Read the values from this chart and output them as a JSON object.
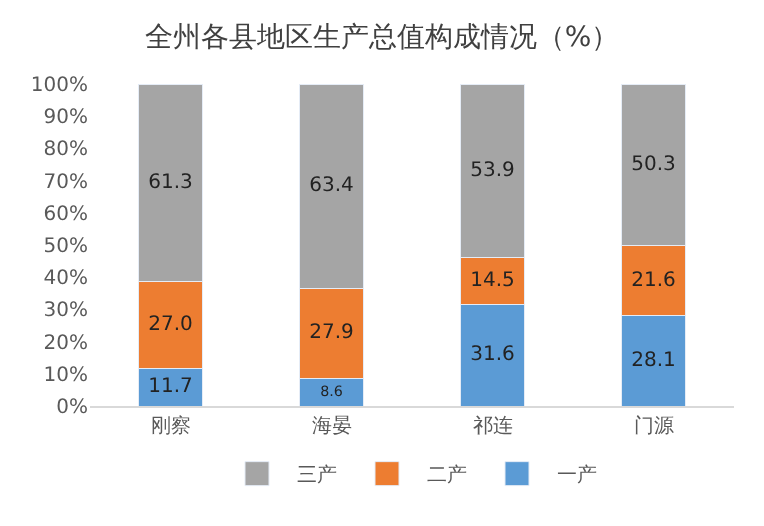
{
  "chart_data": {
    "type": "bar",
    "stacked": true,
    "title": "全州各县地区生产总值构成情况（%）",
    "categories": [
      "刚察",
      "海晏",
      "祁连",
      "门源"
    ],
    "series": [
      {
        "name": "一产",
        "color": "#5b9bd5",
        "values": [
          11.7,
          8.6,
          31.6,
          28.1
        ],
        "value_labels": [
          "11.7",
          "8.6",
          "31.6",
          "28.1"
        ]
      },
      {
        "name": "二产",
        "color": "#ed7d31",
        "values": [
          27.0,
          27.9,
          14.5,
          21.6
        ],
        "value_labels": [
          "27.0",
          "27.9",
          "14.5",
          "21.6"
        ]
      },
      {
        "name": "三产",
        "color": "#a5a5a5",
        "values": [
          61.3,
          63.4,
          53.9,
          50.3
        ],
        "value_labels": [
          "61.3",
          "63.4",
          "53.9",
          "50.3"
        ]
      }
    ],
    "ylim": [
      0,
      100
    ],
    "yticks": [
      {
        "value": 0,
        "label": "0%"
      },
      {
        "value": 10,
        "label": "10%"
      },
      {
        "value": 20,
        "label": "20%"
      },
      {
        "value": 30,
        "label": "30%"
      },
      {
        "value": 40,
        "label": "40%"
      },
      {
        "value": 50,
        "label": "50%"
      },
      {
        "value": 60,
        "label": "60%"
      },
      {
        "value": 70,
        "label": "70%"
      },
      {
        "value": 80,
        "label": "80%"
      },
      {
        "value": 90,
        "label": "90%"
      },
      {
        "value": 100,
        "label": "100%"
      }
    ],
    "legend": "bottom",
    "grid": false
  }
}
